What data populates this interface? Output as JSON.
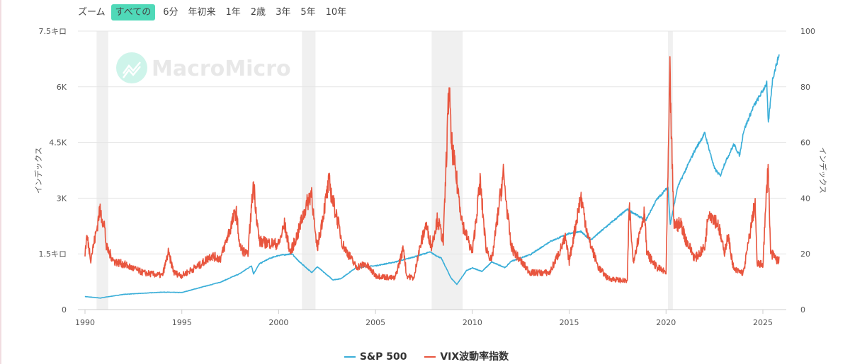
{
  "zoom": {
    "label": "ズーム",
    "buttons": [
      "すべての",
      "6分",
      "年初来",
      "1年",
      "2歳",
      "3年",
      "5年",
      "10年"
    ],
    "active": "すべての"
  },
  "watermark": "MacroMicro",
  "colors": {
    "sp500": "#3aaed8",
    "vix": "#e8553e",
    "recession": "#f0f0f0",
    "accent": "#4fd9b8"
  },
  "chart_data": {
    "type": "line",
    "x_ticks": [
      "1990",
      "1995",
      "2000",
      "2005",
      "2010",
      "2015",
      "2020",
      "2025"
    ],
    "xlim": [
      1989.7,
      2026.3
    ],
    "left_axis": {
      "label": "インデックス",
      "ylim": [
        0,
        7500
      ],
      "ticks": [
        0,
        1500,
        3000,
        4500,
        6000,
        7500
      ],
      "tick_labels": [
        "0",
        "1.5キロ",
        "3K",
        "4.5K",
        "6K",
        "7.5キロ"
      ]
    },
    "right_axis": {
      "label": "インデックス",
      "ylim": [
        0,
        100
      ],
      "ticks": [
        0,
        20,
        40,
        60,
        80,
        100
      ],
      "tick_labels": [
        "0",
        "20",
        "40",
        "60",
        "80",
        "100"
      ]
    },
    "grid": true,
    "legend_position": "bottom",
    "recession_bands": [
      [
        1990.6,
        1991.2
      ],
      [
        2001.2,
        2001.9
      ],
      [
        2007.9,
        2009.5
      ],
      [
        2020.1,
        2020.35
      ]
    ],
    "series": [
      {
        "name": "S&P 500",
        "axis": "left",
        "points": [
          [
            1990,
            350
          ],
          [
            1990.8,
            310
          ],
          [
            1991,
            330
          ],
          [
            1992,
            410
          ],
          [
            1993,
            440
          ],
          [
            1994,
            470
          ],
          [
            1995,
            460
          ],
          [
            1996,
            600
          ],
          [
            1997,
            740
          ],
          [
            1998,
            970
          ],
          [
            1998.6,
            1180
          ],
          [
            1998.7,
            960
          ],
          [
            1999,
            1230
          ],
          [
            1999.5,
            1370
          ],
          [
            2000,
            1460
          ],
          [
            2000.7,
            1500
          ],
          [
            2001,
            1320
          ],
          [
            2001.7,
            1000
          ],
          [
            2002,
            1150
          ],
          [
            2002.8,
            800
          ],
          [
            2003.2,
            830
          ],
          [
            2004,
            1130
          ],
          [
            2005,
            1180
          ],
          [
            2006,
            1280
          ],
          [
            2007,
            1420
          ],
          [
            2007.8,
            1550
          ],
          [
            2008.4,
            1380
          ],
          [
            2008.9,
            850
          ],
          [
            2009.2,
            680
          ],
          [
            2009.7,
            1050
          ],
          [
            2010,
            1120
          ],
          [
            2010.5,
            1030
          ],
          [
            2011,
            1280
          ],
          [
            2011.7,
            1130
          ],
          [
            2012,
            1300
          ],
          [
            2013,
            1480
          ],
          [
            2014,
            1830
          ],
          [
            2015,
            2050
          ],
          [
            2015.6,
            2100
          ],
          [
            2016.1,
            1870
          ],
          [
            2017,
            2270
          ],
          [
            2018,
            2700
          ],
          [
            2018.95,
            2400
          ],
          [
            2019.5,
            2950
          ],
          [
            2020.1,
            3300
          ],
          [
            2020.22,
            2300
          ],
          [
            2020.6,
            3300
          ],
          [
            2021,
            3750
          ],
          [
            2021.5,
            4300
          ],
          [
            2022,
            4750
          ],
          [
            2022.5,
            3800
          ],
          [
            2022.8,
            3600
          ],
          [
            2023,
            3900
          ],
          [
            2023.5,
            4450
          ],
          [
            2023.8,
            4150
          ],
          [
            2024,
            4800
          ],
          [
            2024.5,
            5450
          ],
          [
            2025,
            5900
          ],
          [
            2025.2,
            6100
          ],
          [
            2025.28,
            5000
          ],
          [
            2025.5,
            6200
          ],
          [
            2025.8,
            6800
          ],
          [
            2025.85,
            6850
          ]
        ]
      },
      {
        "name": "VIX波動率指数",
        "axis": "right",
        "points": [
          [
            1990,
            20
          ],
          [
            1990.1,
            26
          ],
          [
            1990.3,
            18
          ],
          [
            1990.6,
            28
          ],
          [
            1990.75,
            35
          ],
          [
            1991,
            30
          ],
          [
            1991.1,
            22
          ],
          [
            1991.5,
            17
          ],
          [
            1992,
            16
          ],
          [
            1993,
            13
          ],
          [
            1994,
            12
          ],
          [
            1994.3,
            20
          ],
          [
            1994.6,
            13
          ],
          [
            1995,
            12
          ],
          [
            1996,
            16
          ],
          [
            1996.5,
            19
          ],
          [
            1997,
            18
          ],
          [
            1997.8,
            35
          ],
          [
            1998,
            22
          ],
          [
            1998.4,
            19
          ],
          [
            1998.7,
            45
          ],
          [
            1998.9,
            30
          ],
          [
            1999,
            24
          ],
          [
            2000,
            23
          ],
          [
            2000.3,
            30
          ],
          [
            2000.6,
            20
          ],
          [
            2001,
            27
          ],
          [
            2001.2,
            32
          ],
          [
            2001.7,
            42
          ],
          [
            2001.9,
            25
          ],
          [
            2002,
            22
          ],
          [
            2002.6,
            45
          ],
          [
            2002.8,
            38
          ],
          [
            2003,
            33
          ],
          [
            2003.3,
            23
          ],
          [
            2004,
            15
          ],
          [
            2004.5,
            16
          ],
          [
            2005,
            12
          ],
          [
            2006,
            11
          ],
          [
            2006.45,
            22
          ],
          [
            2006.6,
            12
          ],
          [
            2007,
            11
          ],
          [
            2007.15,
            18
          ],
          [
            2007.6,
            30
          ],
          [
            2007.9,
            22
          ],
          [
            2008,
            26
          ],
          [
            2008.2,
            32
          ],
          [
            2008.5,
            24
          ],
          [
            2008.8,
            80
          ],
          [
            2008.9,
            60
          ],
          [
            2009.2,
            45
          ],
          [
            2009.5,
            30
          ],
          [
            2010,
            20
          ],
          [
            2010.4,
            45
          ],
          [
            2010.7,
            22
          ],
          [
            2011,
            17
          ],
          [
            2011.6,
            48
          ],
          [
            2011.8,
            35
          ],
          [
            2012,
            22
          ],
          [
            2012.5,
            17
          ],
          [
            2013,
            13
          ],
          [
            2014,
            13
          ],
          [
            2014.8,
            25
          ],
          [
            2015,
            17
          ],
          [
            2015.6,
            40
          ],
          [
            2016,
            25
          ],
          [
            2016.5,
            15
          ],
          [
            2017,
            11
          ],
          [
            2018,
            10
          ],
          [
            2018.1,
            37
          ],
          [
            2018.3,
            17
          ],
          [
            2018.9,
            35
          ],
          [
            2019,
            20
          ],
          [
            2019.5,
            15
          ],
          [
            2020,
            13
          ],
          [
            2020.2,
            82
          ],
          [
            2020.4,
            30
          ],
          [
            2020.8,
            30
          ],
          [
            2021,
            25
          ],
          [
            2021.5,
            18
          ],
          [
            2022,
            22
          ],
          [
            2022.2,
            35
          ],
          [
            2022.7,
            30
          ],
          [
            2023,
            20
          ],
          [
            2023.2,
            26
          ],
          [
            2023.5,
            14
          ],
          [
            2024,
            13
          ],
          [
            2024.6,
            38
          ],
          [
            2024.7,
            16
          ],
          [
            2025,
            16
          ],
          [
            2025.27,
            52
          ],
          [
            2025.4,
            20
          ],
          [
            2025.8,
            17
          ],
          [
            2025.85,
            19
          ]
        ]
      }
    ]
  }
}
